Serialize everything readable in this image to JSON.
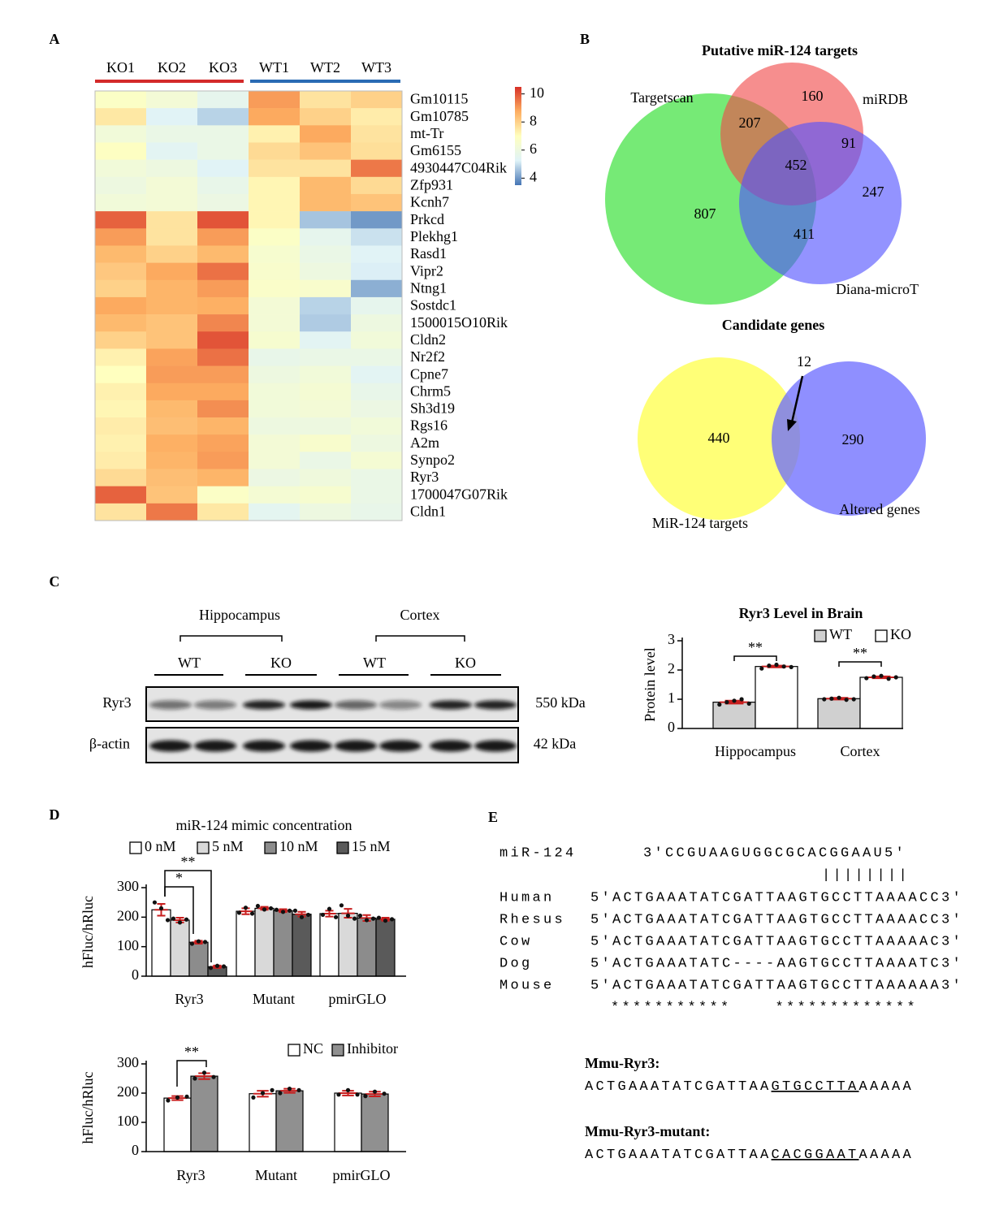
{
  "panel_labels": [
    "A",
    "B",
    "C",
    "D",
    "E"
  ],
  "chart_data": [
    {
      "type": "heatmap",
      "columns": [
        "KO1",
        "KO2",
        "KO3",
        "WT1",
        "WT2",
        "WT3"
      ],
      "rows": [
        "Gm10115",
        "Gm10785",
        "mt-Tr",
        "Gm6155",
        "4930447C04Rik",
        "Zfp931",
        "Kcnh7",
        "Prkcd",
        "Plekhg1",
        "Rasd1",
        "Vipr2",
        "Ntng1",
        "Sostdc1",
        "1500015O10Rik",
        "Cldn2",
        "Nr2f2",
        "Cpne7",
        "Chrm5",
        "Sh3d19",
        "Rgs16",
        "A2m",
        "Synpo2",
        "Ryr3",
        "1700047G07Rik",
        "Cldn1"
      ],
      "values": [
        [
          6.8,
          6.3,
          5.6,
          9.0,
          7.6,
          8.0
        ],
        [
          7.5,
          5.3,
          4.8,
          8.8,
          8.0,
          7.4
        ],
        [
          6.2,
          5.8,
          5.8,
          7.3,
          8.8,
          7.6
        ],
        [
          6.9,
          5.4,
          5.8,
          7.8,
          8.3,
          7.7
        ],
        [
          6.2,
          6.0,
          5.3,
          7.6,
          7.6,
          9.5
        ],
        [
          6.0,
          6.3,
          5.7,
          7.2,
          8.5,
          7.8
        ],
        [
          6.2,
          6.3,
          5.9,
          7.2,
          8.5,
          8.3
        ],
        [
          9.8,
          7.6,
          10.0,
          7.2,
          4.6,
          4.0
        ],
        [
          9.0,
          7.6,
          9.0,
          6.8,
          5.6,
          5.0
        ],
        [
          8.5,
          8.0,
          8.5,
          6.5,
          5.8,
          5.3
        ],
        [
          8.2,
          8.8,
          9.6,
          6.6,
          6.0,
          5.2
        ],
        [
          8.0,
          8.6,
          9.0,
          6.7,
          6.6,
          4.3
        ],
        [
          8.8,
          8.6,
          8.7,
          6.3,
          4.8,
          5.6
        ],
        [
          8.5,
          8.3,
          9.3,
          6.3,
          4.7,
          6.0
        ],
        [
          8.0,
          8.3,
          10.0,
          6.5,
          5.4,
          6.2
        ],
        [
          7.3,
          8.9,
          9.6,
          5.7,
          5.8,
          5.8
        ],
        [
          7.0,
          9.0,
          9.0,
          6.0,
          6.2,
          5.4
        ],
        [
          7.3,
          8.8,
          8.8,
          6.2,
          6.4,
          5.7
        ],
        [
          7.2,
          8.5,
          9.2,
          6.2,
          6.3,
          5.9
        ],
        [
          7.4,
          8.4,
          8.6,
          6.0,
          6.0,
          6.2
        ],
        [
          7.3,
          8.7,
          8.9,
          6.3,
          6.6,
          6.0
        ],
        [
          7.4,
          8.6,
          9.0,
          6.3,
          5.8,
          6.4
        ],
        [
          7.8,
          8.4,
          8.6,
          5.9,
          6.1,
          5.8
        ],
        [
          9.8,
          8.3,
          6.8,
          6.4,
          6.5,
          5.8
        ],
        [
          7.6,
          9.5,
          7.5,
          5.5,
          6.0,
          5.7
        ]
      ],
      "colormap": [
        "#4575b4",
        "#e0f3f8",
        "#ffffbf",
        "#fdae61",
        "#d73027"
      ],
      "clim": [
        3.5,
        10.5
      ],
      "colorbar_ticks": [
        4,
        6,
        8,
        10
      ]
    },
    {
      "type": "bar",
      "title": "Ryr3 Level in Brain",
      "ylabel": "Protein level",
      "categories": [
        "Hippocampus",
        "Cortex"
      ],
      "series": [
        {
          "name": "WT",
          "color": "#d0d0d0",
          "values": [
            0.9,
            1.02
          ],
          "errors": [
            0.05,
            0.03
          ],
          "points": [
            [
              0.82,
              0.9,
              0.95,
              1.0,
              0.85
            ],
            [
              1.0,
              1.02,
              1.05,
              0.98,
              1.0
            ]
          ]
        },
        {
          "name": "KO",
          "color": "#ffffff",
          "values": [
            2.12,
            1.75
          ],
          "errors": [
            0.03,
            0.03
          ],
          "points": [
            [
              2.05,
              2.15,
              2.18,
              2.12,
              2.1
            ],
            [
              1.72,
              1.78,
              1.8,
              1.7,
              1.75
            ]
          ]
        }
      ],
      "ylim": [
        0,
        3
      ],
      "yticks": [
        0,
        1,
        2,
        3
      ],
      "annotations": [
        "**",
        "**"
      ]
    },
    {
      "type": "bar",
      "title": "miR-124 mimic concentration",
      "ylabel": "hFluc/hRluc",
      "categories": [
        "Ryr3",
        "Mutant",
        "pmirGLO"
      ],
      "series": [
        {
          "name": "0 nM",
          "color": "#ffffff",
          "values": [
            225,
            220,
            212
          ],
          "errors": [
            20,
            10,
            10
          ],
          "points": [
            [
              250,
              230,
              190
            ],
            [
              215,
              232,
              212
            ],
            [
              208,
              228,
              200
            ]
          ]
        },
        {
          "name": "5 nM",
          "color": "#d9d9d9",
          "values": [
            190,
            230,
            213
          ],
          "errors": [
            8,
            5,
            15
          ],
          "points": [
            [
              195,
              182,
              192
            ],
            [
              238,
              226,
              230
            ],
            [
              240,
              205,
              195
            ]
          ]
        },
        {
          "name": "10 nM",
          "color": "#8c8c8c",
          "values": [
            115,
            222,
            197
          ],
          "errors": [
            5,
            5,
            10
          ],
          "points": [
            [
              110,
              118,
              116
            ],
            [
              225,
              218,
              222
            ],
            [
              205,
              190,
              195
            ]
          ]
        },
        {
          "name": "15 nM",
          "color": "#5a5a5a",
          "values": [
            32,
            210,
            193
          ],
          "errors": [
            4,
            8,
            5
          ],
          "points": [
            [
              28,
              35,
              33
            ],
            [
              222,
              200,
              208
            ],
            [
              198,
              188,
              193
            ]
          ]
        }
      ],
      "ylim": [
        0,
        300
      ],
      "yticks": [
        0,
        100,
        200,
        300
      ],
      "annotations": [
        "*",
        "**"
      ]
    },
    {
      "type": "bar",
      "ylabel": "hFluc/hRluc",
      "categories": [
        "Ryr3",
        "Mutant",
        "pmirGLO"
      ],
      "series": [
        {
          "name": "NC",
          "color": "#ffffff",
          "values": [
            183,
            198,
            200
          ],
          "errors": [
            7,
            10,
            8
          ],
          "points": [
            [
              175,
              185,
              188
            ],
            [
              185,
              200,
              210
            ],
            [
              195,
              210,
              195
            ]
          ]
        },
        {
          "name": "Inhibitor",
          "color": "#909090",
          "values": [
            258,
            208,
            197
          ],
          "errors": [
            10,
            7,
            8
          ],
          "points": [
            [
              250,
              270,
              255
            ],
            [
              200,
              215,
              210
            ],
            [
              190,
              205,
              198
            ]
          ]
        }
      ],
      "ylim": [
        0,
        300
      ],
      "yticks": [
        0,
        100,
        200,
        300
      ],
      "annotations": [
        "**"
      ]
    }
  ],
  "venn": [
    {
      "title": "Putative miR-124 targets",
      "sets": [
        {
          "name": "Targetscan",
          "color": "#22dd22"
        },
        {
          "name": "miRDB",
          "color": "#f04848"
        },
        {
          "name": "Diana-microT",
          "color": "#5050ff"
        }
      ],
      "regions": [
        "160",
        "207",
        "452",
        "91",
        "807",
        "411",
        "247"
      ]
    },
    {
      "title": "Candidate genes",
      "sets": [
        {
          "name": "MiR-124 targets",
          "color": "#ffff55"
        },
        {
          "name": "Altered genes",
          "color": "#6a6aff"
        }
      ],
      "regions": [
        "440",
        "290",
        "12"
      ]
    }
  ],
  "blot": {
    "regions": [
      "Hippocampus",
      "Cortex"
    ],
    "groups": [
      "WT",
      "KO",
      "WT",
      "KO"
    ],
    "proteins": [
      "Ryr3",
      "β-actin"
    ],
    "sizes": [
      "550 kDa",
      "42 kDa"
    ]
  },
  "alignment": {
    "mirna": {
      "name": "miR-124",
      "sequence": "3′CCGUAAGUGGCGCACGGAAU5′"
    },
    "pairing": "||||||||",
    "species": [
      {
        "name": "Human",
        "sequence": "5′ACTGAAATATCGATTAAGTGCCTTAAAACC3′"
      },
      {
        "name": "Rhesus",
        "sequence": "5′ACTGAAATATCGATTAAGTGCCTTAAAACC3′"
      },
      {
        "name": "Cow",
        "sequence": "5′ACTGAAATATCGATTAAGTGCCTTAAAAAC3′"
      },
      {
        "name": "Dog",
        "sequence": "5′ACTGAAATATC----AAGTGCCTTAAAATC3′"
      },
      {
        "name": "Mouse",
        "sequence": "5′ACTGAAATATCGATTAAGTGCCTTAAAAAA3′"
      }
    ],
    "conservation": "***********    *************"
  },
  "constructs": [
    {
      "name": "Mmu-Ryr3:",
      "sequence": [
        "ACTGAAATATCGATTAA",
        "GTGCCTTA",
        "AAAAA"
      ]
    },
    {
      "name": "Mmu-Ryr3-mutant:",
      "sequence": [
        "ACTGAAATATCGATTAA",
        "CACGGAAT",
        "AAAAA"
      ]
    }
  ]
}
